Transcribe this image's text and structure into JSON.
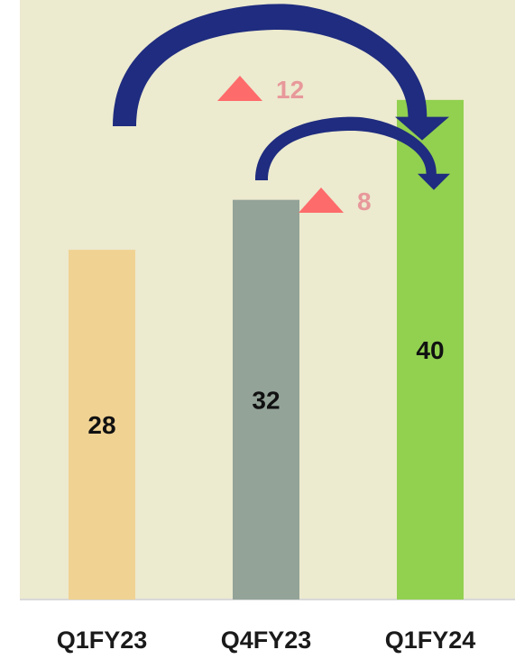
{
  "chart_data": {
    "type": "bar",
    "categories": [
      "Q1FY23",
      "Q4FY23",
      "Q1FY24"
    ],
    "values": [
      28,
      32,
      40
    ],
    "title": "",
    "xlabel": "",
    "ylabel": "",
    "ylim": [
      0,
      48
    ],
    "grid": false,
    "legend": "none",
    "bar_colors": [
      "#f0d293",
      "#93a398",
      "#92d050"
    ],
    "annotations": [
      {
        "from": "Q1FY23",
        "to": "Q1FY24",
        "delta": "12",
        "marker": "up-triangle-icon"
      },
      {
        "from": "Q4FY23",
        "to": "Q1FY24",
        "delta": "8",
        "marker": "up-triangle-icon"
      }
    ]
  },
  "colors": {
    "plot_background": "#eceacf",
    "arrow": "#1f2c7f",
    "delta_marker": "#fe6b6b",
    "delta_text": "#e8989a",
    "baseline": "#d9d9d9"
  }
}
